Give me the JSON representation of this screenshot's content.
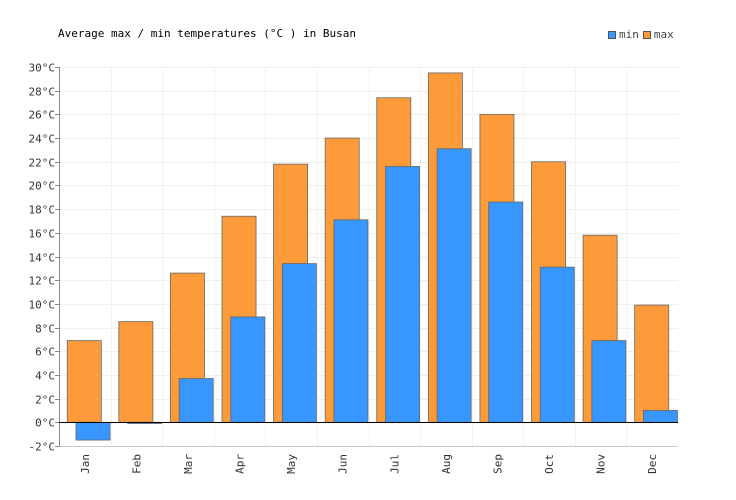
{
  "chart_data": {
    "type": "bar",
    "title": "Average max / min temperatures (°C ) in Busan",
    "categories": [
      "Jan",
      "Feb",
      "Mar",
      "Apr",
      "May",
      "Jun",
      "Jul",
      "Aug",
      "Sep",
      "Oct",
      "Nov",
      "Dec"
    ],
    "series": [
      {
        "name": "min",
        "color": "#3797fe",
        "values": [
          -1.5,
          -0.1,
          3.7,
          8.9,
          13.4,
          17.1,
          21.6,
          23.1,
          18.6,
          13.1,
          6.9,
          1.0
        ]
      },
      {
        "name": "max",
        "color": "#fd9a39",
        "values": [
          6.9,
          8.5,
          12.6,
          17.4,
          21.8,
          24.0,
          27.4,
          29.5,
          26.0,
          22.0,
          15.8,
          9.9
        ]
      }
    ],
    "ylim": [
      -2,
      30
    ],
    "y_ticks": [
      -2,
      0,
      2,
      4,
      6,
      8,
      10,
      12,
      14,
      16,
      18,
      20,
      22,
      24,
      26,
      28,
      30
    ],
    "y_tick_suffix": "°C",
    "grid": true,
    "legend_position": "top-right",
    "xlabel": "",
    "ylabel": ""
  }
}
